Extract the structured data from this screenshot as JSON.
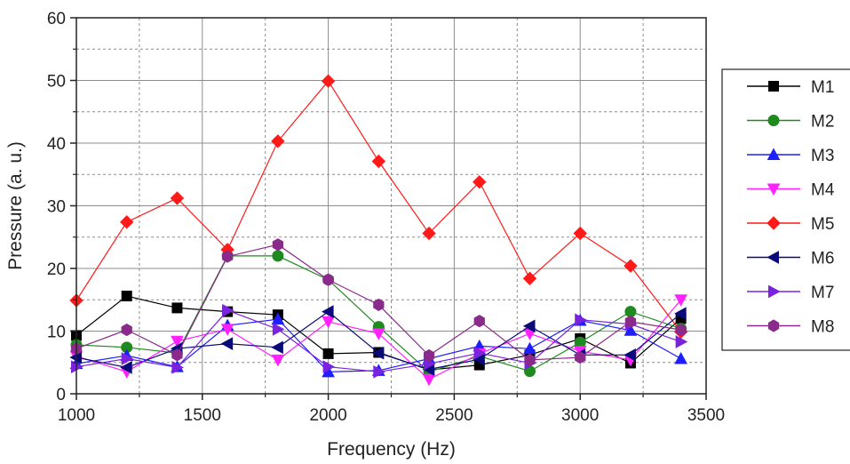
{
  "chart_data": {
    "type": "line",
    "title": "",
    "xlabel": "Frequency (Hz)",
    "ylabel": "Pressure (a. u.)",
    "xlim": [
      1000,
      3500
    ],
    "ylim": [
      0,
      60
    ],
    "x_ticks": [
      1000,
      1500,
      2000,
      2500,
      3000,
      3500
    ],
    "y_ticks": [
      0,
      10,
      20,
      30,
      40,
      50,
      60
    ],
    "x_tick_labels": [
      "1000",
      "1500",
      "2000",
      "2500",
      "3000",
      "3500"
    ],
    "y_tick_labels": [
      "0",
      "10",
      "20",
      "30",
      "40",
      "50",
      "60"
    ],
    "x_minor_gridlines": [
      1250,
      1750,
      2250,
      2750,
      3250
    ],
    "y_minor_gridlines": [
      5,
      15,
      25,
      35,
      45,
      55
    ],
    "grid": true,
    "legend_position": "right",
    "x": [
      1000,
      1200,
      1400,
      1600,
      1800,
      2000,
      2200,
      2400,
      2600,
      2800,
      3000,
      3200,
      3400
    ],
    "series": [
      {
        "name": "M1",
        "color": "#000000",
        "marker": "square",
        "values": [
          9.3,
          15.6,
          13.7,
          13.1,
          12.6,
          6.4,
          6.6,
          3.8,
          4.6,
          6.2,
          8.8,
          4.9,
          12.0
        ]
      },
      {
        "name": "M2",
        "color": "#1f8a1f",
        "marker": "circle",
        "values": [
          7.8,
          7.4,
          6.5,
          22.0,
          22.0,
          18.2,
          10.7,
          3.5,
          6.0,
          3.6,
          8.2,
          13.1,
          10.4
        ]
      },
      {
        "name": "M3",
        "color": "#1e1eff",
        "marker": "triangle-up",
        "values": [
          4.8,
          6.1,
          4.3,
          10.9,
          11.9,
          3.5,
          3.7,
          5.6,
          7.6,
          7.2,
          11.7,
          10.1,
          5.6
        ]
      },
      {
        "name": "M4",
        "color": "#ff22ff",
        "marker": "triangle-down",
        "values": [
          6.0,
          3.5,
          8.4,
          10.3,
          5.4,
          11.5,
          9.6,
          2.3,
          6.4,
          9.6,
          6.8,
          5.4,
          15.0
        ]
      },
      {
        "name": "M5",
        "color": "#ff1a1a",
        "marker": "diamond",
        "values": [
          14.9,
          27.4,
          31.2,
          23.0,
          40.3,
          49.9,
          37.1,
          25.6,
          33.8,
          18.4,
          25.6,
          20.4,
          9.9
        ]
      },
      {
        "name": "M6",
        "color": "#0a0a7a",
        "marker": "triangle-left",
        "values": [
          5.8,
          4.2,
          7.2,
          8.0,
          7.4,
          13.1,
          6.5,
          3.9,
          5.5,
          10.8,
          6.2,
          6.2,
          12.8
        ]
      },
      {
        "name": "M7",
        "color": "#7a22dd",
        "marker": "triangle-right",
        "values": [
          4.3,
          5.6,
          4.2,
          13.3,
          10.3,
          4.3,
          3.5,
          4.8,
          6.5,
          4.9,
          11.8,
          11.1,
          8.3
        ]
      },
      {
        "name": "M8",
        "color": "#8a2a8a",
        "marker": "hexagon",
        "values": [
          7.2,
          10.2,
          6.2,
          21.9,
          23.8,
          18.2,
          14.2,
          6.1,
          11.6,
          5.4,
          5.8,
          11.5,
          10.2
        ]
      }
    ]
  }
}
